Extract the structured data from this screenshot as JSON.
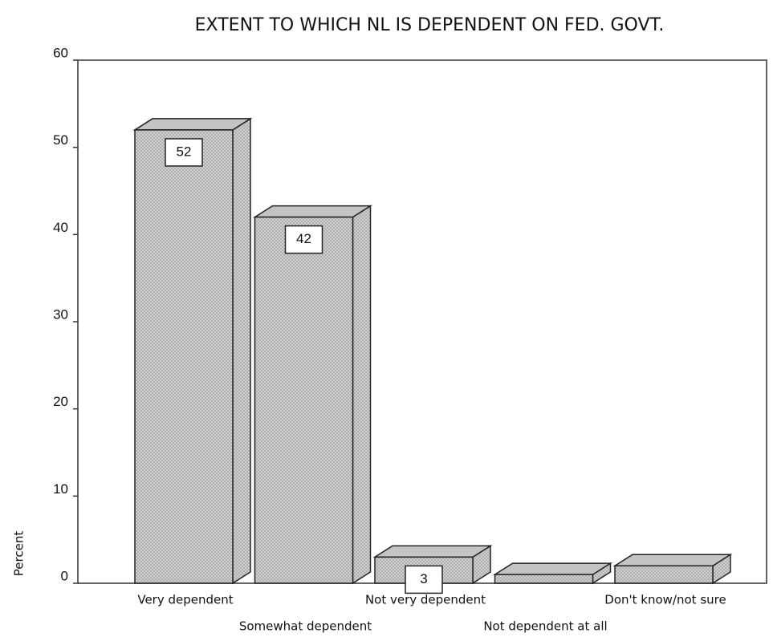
{
  "chart_data": {
    "type": "bar3d",
    "title": "EXTENT TO WHICH NL IS DEPENDENT ON FED. GOVT.",
    "y_label": "Percent",
    "categories": [
      "Very dependent",
      "Somewhat dependent",
      "Not very dependent",
      "Not dependent at all",
      "Don't know/not sure"
    ],
    "values": [
      52,
      42,
      3,
      1,
      2
    ],
    "value_labels": [
      "52",
      "42",
      "3",
      null,
      null
    ],
    "color": "#d4d4d4",
    "ylim": [
      0,
      60
    ],
    "yticks": [
      0,
      10,
      20,
      30,
      40,
      50,
      60
    ],
    "grid": false
  }
}
